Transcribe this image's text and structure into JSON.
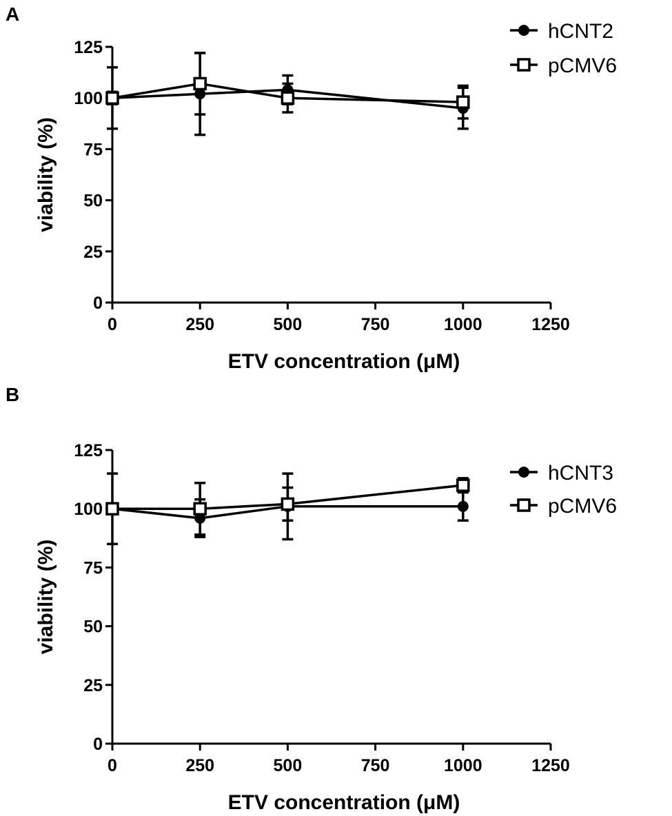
{
  "chart_data": [
    {
      "panel": "A",
      "type": "line",
      "title": "",
      "xlabel": "ETV concentration (μM)",
      "ylabel": "viability (%)",
      "xlim": [
        0,
        1250
      ],
      "ylim": [
        0,
        125
      ],
      "x_ticks": [
        0,
        250,
        500,
        750,
        1000,
        1250
      ],
      "y_ticks": [
        0,
        25,
        50,
        75,
        100,
        125
      ],
      "grid": false,
      "legend_position": "top-right",
      "x": [
        0,
        250,
        500,
        1000
      ],
      "series": [
        {
          "name": "hCNT2",
          "marker": "filled-circle",
          "values": [
            100,
            102,
            104,
            95
          ],
          "errors": [
            15,
            20,
            7,
            10
          ]
        },
        {
          "name": "pCMV6",
          "marker": "open-square",
          "values": [
            100,
            107,
            100,
            98
          ],
          "errors": [
            3,
            15,
            7,
            8
          ]
        }
      ]
    },
    {
      "panel": "B",
      "type": "line",
      "title": "",
      "xlabel": "ETV concentration (μM)",
      "ylabel": "viability (%)",
      "xlim": [
        0,
        1250
      ],
      "ylim": [
        0,
        125
      ],
      "x_ticks": [
        0,
        250,
        500,
        750,
        1000,
        1250
      ],
      "y_ticks": [
        0,
        25,
        50,
        75,
        100,
        125
      ],
      "grid": false,
      "legend_position": "right",
      "x": [
        0,
        250,
        500,
        1000
      ],
      "series": [
        {
          "name": "hCNT3",
          "marker": "filled-circle",
          "values": [
            100,
            96,
            101,
            101
          ],
          "errors": [
            15,
            8,
            14,
            6
          ]
        },
        {
          "name": "pCMV6",
          "marker": "open-square",
          "values": [
            100,
            100,
            102,
            110
          ],
          "errors": [
            2,
            11,
            7,
            3
          ]
        }
      ]
    }
  ]
}
